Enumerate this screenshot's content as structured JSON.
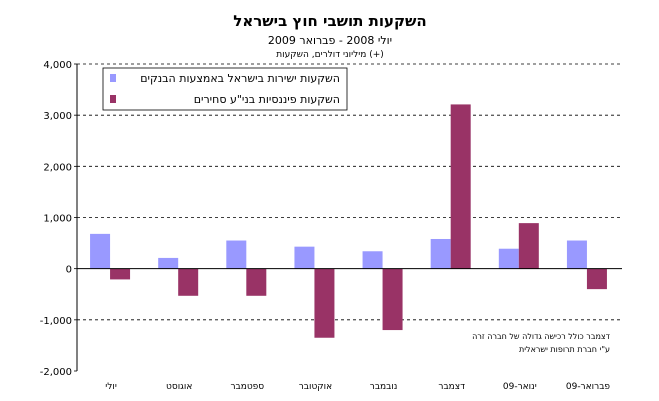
{
  "chart_data": {
    "type": "bar",
    "title": "השקעות תושבי חוץ בישראל",
    "subtitle": "יולי 2008 - פברואר 2009",
    "ylabel": "מיליוני דולרים, השקעות (+)",
    "xlabel": "",
    "categories": [
      "יולי",
      "אוגוסט",
      "ספטמבר",
      "אוקטובר",
      "נובמבר",
      "דצמבר",
      "ינואר-09",
      "פברואר-09"
    ],
    "series": [
      {
        "name": "השקעות ישירות בישראל באמצעות הבנקים",
        "color": "#9999ff",
        "values": [
          680,
          210,
          550,
          430,
          340,
          580,
          390,
          550
        ]
      },
      {
        "name": "השקעות פיננסיות בני\"ע סחירים",
        "color": "#993366",
        "values": [
          -210,
          -530,
          -530,
          -1350,
          -1200,
          3210,
          890,
          -400
        ]
      }
    ],
    "ylim": [
      -2000,
      4000
    ],
    "yticks": [
      -2000,
      -1000,
      0,
      1000,
      2000,
      3000,
      4000
    ],
    "ytick_labels": [
      "-2,000",
      "-1,000",
      "0",
      "1,000",
      "2,000",
      "3,000",
      "4,000"
    ],
    "grid": true,
    "legend": "top-left",
    "annotation": [
      "דצמבר כולל רכישה גדולה של חברה זרה",
      "ע\"י חברת תרופות ישראלית"
    ]
  }
}
